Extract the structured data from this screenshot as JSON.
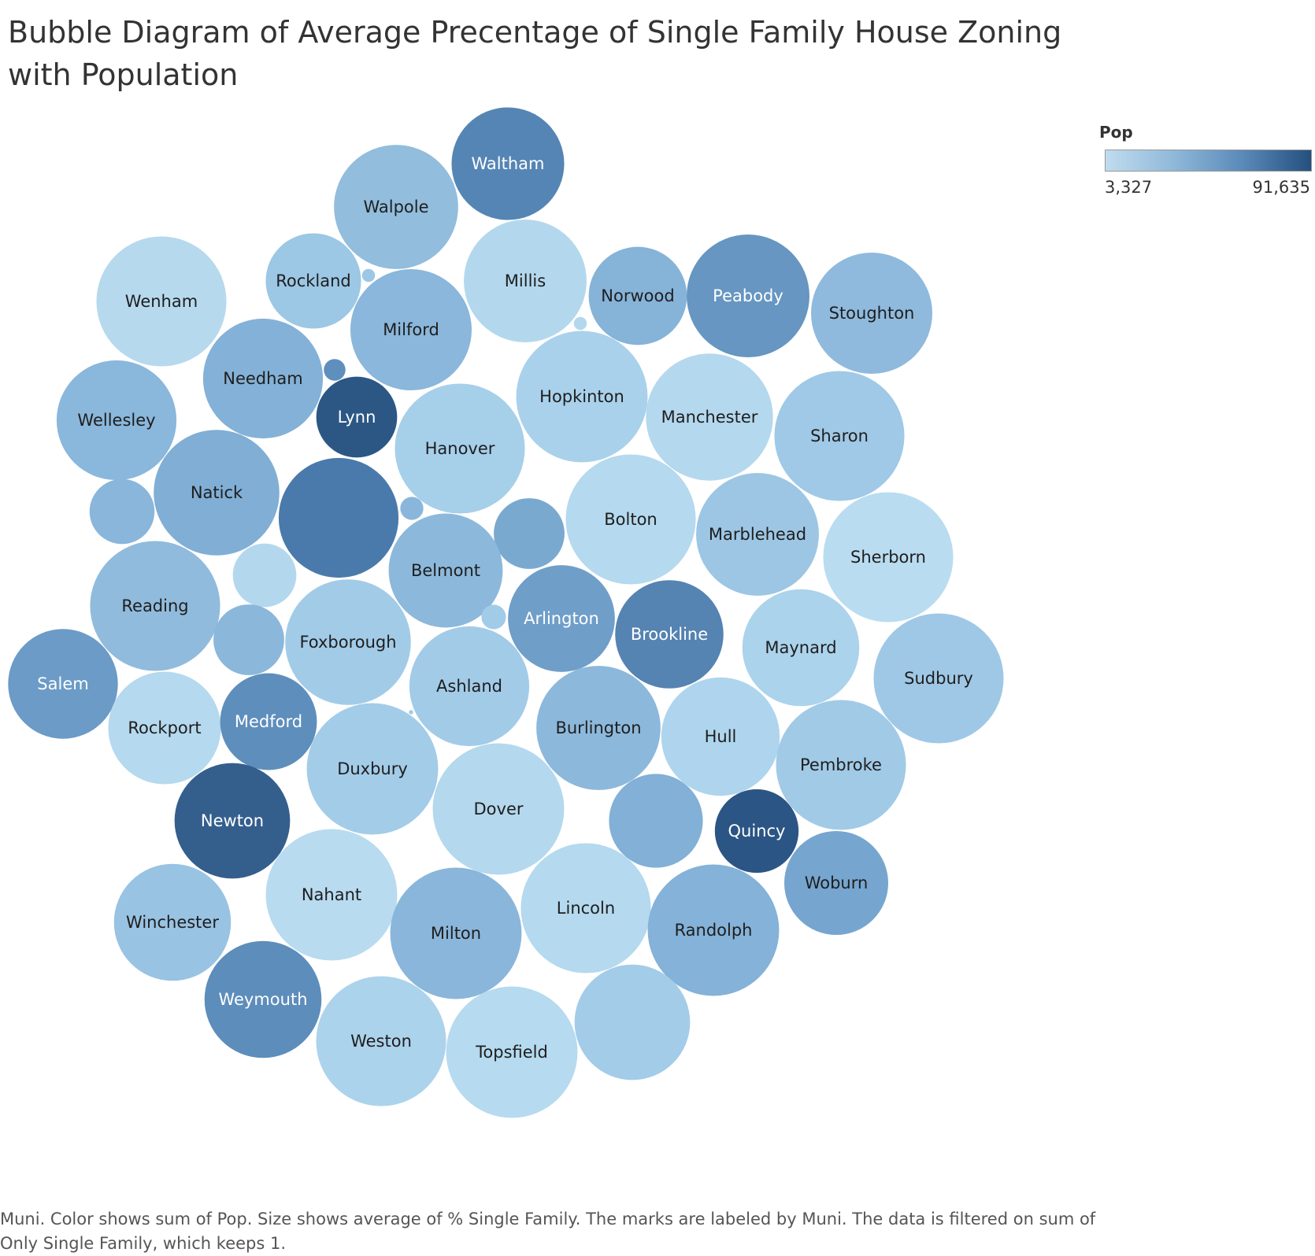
{
  "chart_data": {
    "type": "bubble",
    "title": "Bubble Diagram of Average Precentage of Single Family House Zoning with Population",
    "legend": {
      "title": "Pop",
      "min_label": "3,327",
      "max_label": "91,635",
      "min": 3327,
      "max": 91635,
      "placement": "top-right",
      "colors": [
        "#c0dcee",
        "#8fb8d9",
        "#5a8ab8",
        "#24507e"
      ]
    },
    "caption": "Muni.  Color shows sum of Pop.  Size shows average of % Single Family.  The marks are labeled by Muni. The data is filtered on sum of Only Single Family, which keeps 1.",
    "bubbles": [
      {
        "label": "Waltham",
        "size_rel": 78,
        "color": "#5585b4"
      },
      {
        "label": "Walpole",
        "size_rel": 86,
        "color": "#92bddd"
      },
      {
        "label": "Rockland",
        "size_rel": 66,
        "color": "#9cc7e5"
      },
      {
        "label": "Millis",
        "size_rel": 85,
        "color": "#b3d8ee"
      },
      {
        "label": "Norwood",
        "size_rel": 68,
        "color": "#86b3d8"
      },
      {
        "label": "Peabody",
        "size_rel": 85,
        "color": "#6696c1"
      },
      {
        "label": "Stoughton",
        "size_rel": 84,
        "color": "#8fbadd"
      },
      {
        "label": "Wenham",
        "size_rel": 90,
        "color": "#b6d9ee"
      },
      {
        "label": "Milford",
        "size_rel": 84,
        "color": "#8ab7db"
      },
      {
        "label": "Needham",
        "size_rel": 83,
        "color": "#84b1d7"
      },
      {
        "label": "Wellesley",
        "size_rel": 83,
        "color": "#8ab7dc"
      },
      {
        "label": "Lynn",
        "size_rel": 56,
        "color": "#2c5785"
      },
      {
        "label": "Hopkinton",
        "size_rel": 91,
        "color": "#a9d1eb"
      },
      {
        "label": "Manchester",
        "size_rel": 88,
        "color": "#b4d8ee"
      },
      {
        "label": "Sharon",
        "size_rel": 90,
        "color": "#9fc9e6"
      },
      {
        "label": "Hanover",
        "size_rel": 90,
        "color": "#a6cfea"
      },
      {
        "label": "Natick",
        "size_rel": 87,
        "color": "#80aed5"
      },
      {
        "label": "",
        "size_rel": 45,
        "color": "#8ab6db"
      },
      {
        "label": "",
        "size_rel": 83,
        "color": "#4a7aab"
      },
      {
        "label": "Bolton",
        "size_rel": 90,
        "color": "#b5d9ee"
      },
      {
        "label": "Marblehead",
        "size_rel": 85,
        "color": "#9cc6e4"
      },
      {
        "label": "Sherborn",
        "size_rel": 90,
        "color": "#b9dcf0"
      },
      {
        "label": "",
        "size_rel": 49,
        "color": "#7aa9d0"
      },
      {
        "label": "Belmont",
        "size_rel": 79,
        "color": "#8cb8db"
      },
      {
        "label": "",
        "size_rel": 44,
        "color": "#b3d8ee"
      },
      {
        "label": "Reading",
        "size_rel": 90,
        "color": "#90bbdc"
      },
      {
        "label": "Arlington",
        "size_rel": 74,
        "color": "#6f9ec9"
      },
      {
        "label": "Brookline",
        "size_rel": 75,
        "color": "#5583b2"
      },
      {
        "label": "Maynard",
        "size_rel": 81,
        "color": "#abd3ec"
      },
      {
        "label": "",
        "size_rel": 49,
        "color": "#8bb7db"
      },
      {
        "label": "Foxborough",
        "size_rel": 87,
        "color": "#a2cbe8"
      },
      {
        "label": "Salem",
        "size_rel": 76,
        "color": "#6b9bc6"
      },
      {
        "label": "Ashland",
        "size_rel": 83,
        "color": "#a2cbe8"
      },
      {
        "label": "Sudbury",
        "size_rel": 90,
        "color": "#9fc8e6"
      },
      {
        "label": "Rockport",
        "size_rel": 78,
        "color": "#b5d9ee"
      },
      {
        "label": "Medford",
        "size_rel": 67,
        "color": "#5e8ebc"
      },
      {
        "label": "Burlington",
        "size_rel": 86,
        "color": "#8cb8db"
      },
      {
        "label": "Hull",
        "size_rel": 82,
        "color": "#aed5ed"
      },
      {
        "label": "Pembroke",
        "size_rel": 90,
        "color": "#a1cae7"
      },
      {
        "label": "Duxbury",
        "size_rel": 91,
        "color": "#a3cce8"
      },
      {
        "label": "Dover",
        "size_rel": 91,
        "color": "#b4d8ee"
      },
      {
        "label": "",
        "size_rel": 65,
        "color": "#82b0d6"
      },
      {
        "label": "Newton",
        "size_rel": 80,
        "color": "#345f8d"
      },
      {
        "label": "Quincy",
        "size_rel": 58,
        "color": "#2b5584"
      },
      {
        "label": "Woburn",
        "size_rel": 72,
        "color": "#76a6cf"
      },
      {
        "label": "Nahant",
        "size_rel": 91,
        "color": "#b8dbf0"
      },
      {
        "label": "Winchester",
        "size_rel": 81,
        "color": "#98c3e3"
      },
      {
        "label": "Milton",
        "size_rel": 91,
        "color": "#8ab6db"
      },
      {
        "label": "Lincoln",
        "size_rel": 90,
        "color": "#b5d9ee"
      },
      {
        "label": "Randolph",
        "size_rel": 91,
        "color": "#84b2d8"
      },
      {
        "label": "Weymouth",
        "size_rel": 81,
        "color": "#5d8dbb"
      },
      {
        "label": "Weston",
        "size_rel": 90,
        "color": "#acd3ec"
      },
      {
        "label": "Topsfield",
        "size_rel": 91,
        "color": "#b6daef"
      },
      {
        "label": "",
        "size_rel": 80,
        "color": "#a3cce8"
      },
      {
        "label": "",
        "size_rel": 9,
        "color": "#9cc7e5"
      },
      {
        "label": "",
        "size_rel": 9,
        "color": "#b3d8ee"
      },
      {
        "label": "",
        "size_rel": 15,
        "color": "#5f8fbd"
      },
      {
        "label": "",
        "size_rel": 16,
        "color": "#8ab6db"
      },
      {
        "label": "",
        "size_rel": 17,
        "color": "#a2cbe8"
      },
      {
        "label": "",
        "size_rel": 3,
        "color": "#a2cbe8"
      }
    ]
  }
}
